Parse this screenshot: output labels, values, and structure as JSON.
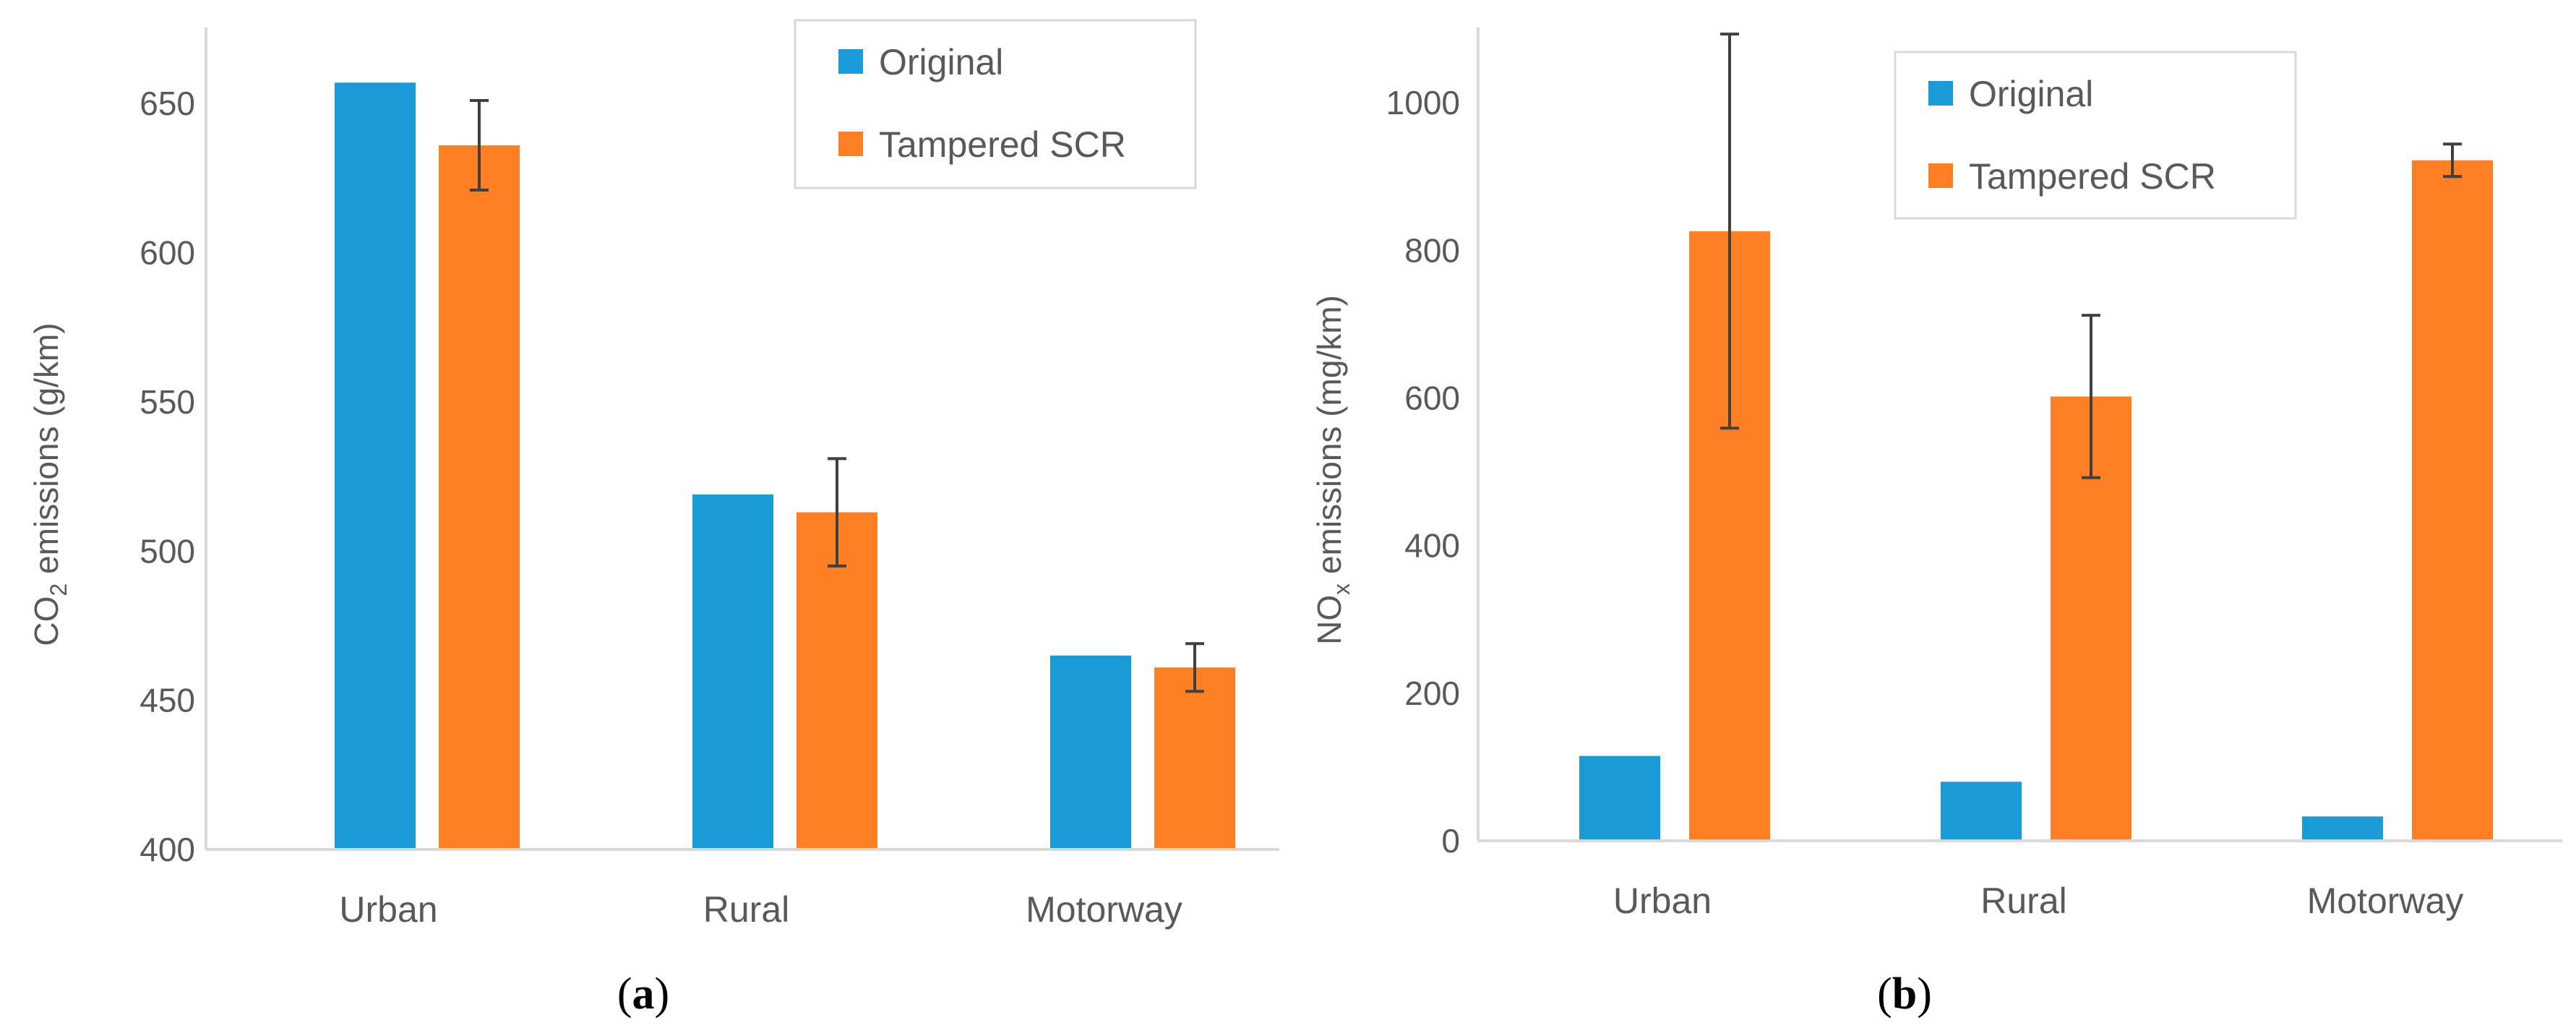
{
  "colors": {
    "original": "#1a9ad6",
    "tampered": "#ff7f24",
    "axis": "#d9d9d9",
    "text": "#595959",
    "errorbar": "#404040"
  },
  "chart_data": [
    {
      "id": "a",
      "type": "bar",
      "panel_label": "a",
      "categories": [
        "Urban",
        "Rural",
        "Motorway"
      ],
      "series": [
        {
          "name": "Original",
          "values": [
            657,
            519,
            465
          ]
        },
        {
          "name": "Tampered SCR",
          "values": [
            636,
            513,
            461
          ],
          "errors": [
            15,
            18,
            8
          ]
        }
      ],
      "ylabel_main": "CO",
      "ylabel_sub": "2",
      "ylabel_rest": " emissions (g/km)",
      "ylim": [
        400,
        675
      ],
      "yticks": [
        400,
        450,
        500,
        550,
        600,
        650
      ],
      "legend": [
        "Original",
        "Tampered SCR"
      ],
      "legend_position": "top-right",
      "grid": false
    },
    {
      "id": "b",
      "type": "bar",
      "panel_label": "b",
      "categories": [
        "Urban",
        "Rural",
        "Motorway"
      ],
      "series": [
        {
          "name": "Original",
          "values": [
            115,
            80,
            33
          ]
        },
        {
          "name": "Tampered SCR",
          "values": [
            826,
            602,
            922
          ],
          "errors": [
            267,
            110,
            22
          ]
        }
      ],
      "ylabel_main": "NO",
      "ylabel_sub": "x",
      "ylabel_rest": " emissions (mg/km)",
      "ylim": [
        0,
        1100
      ],
      "yticks": [
        0,
        200,
        400,
        600,
        800,
        1000
      ],
      "legend": [
        "Original",
        "Tampered SCR"
      ],
      "legend_position": "top-left",
      "grid": false
    }
  ]
}
